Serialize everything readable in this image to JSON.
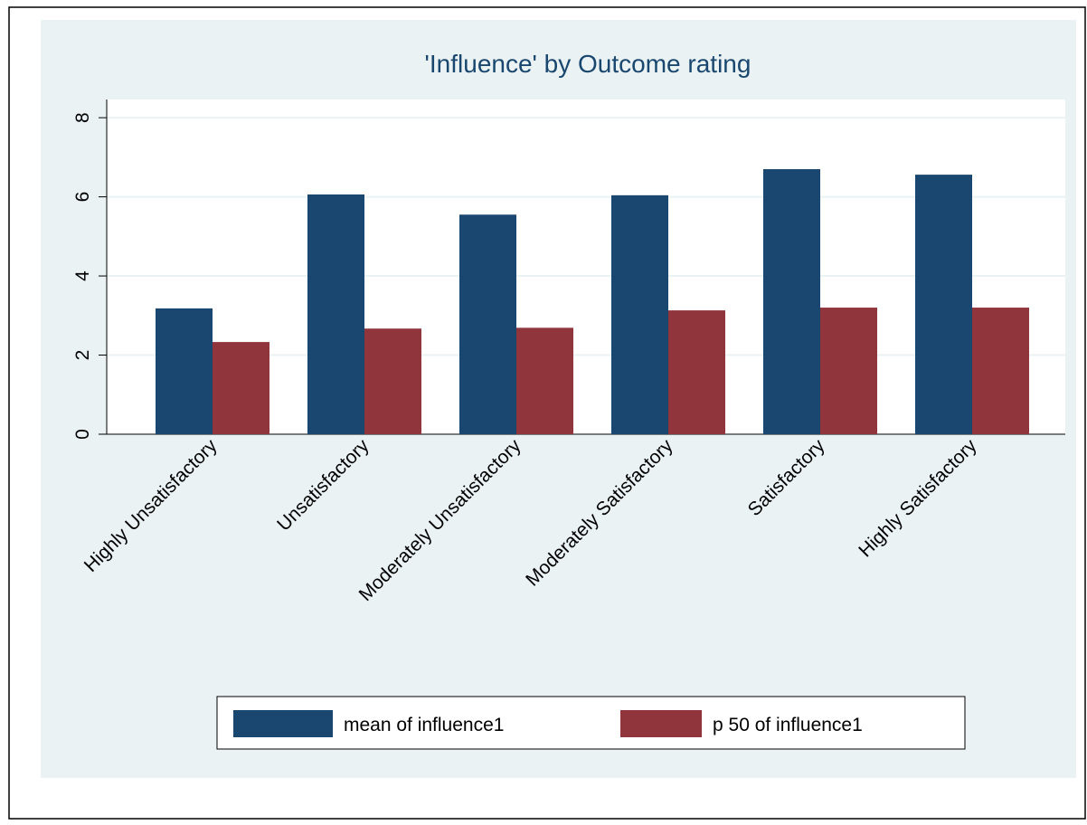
{
  "chart_data": {
    "type": "bar",
    "title": "'Influence' by Outcome rating",
    "categories": [
      "Highly Unsatisfactory",
      "Unsatisfactory",
      "Moderately Unsatisfactory",
      "Moderately Satisfactory",
      "Satisfactory",
      "Highly Satisfactory"
    ],
    "series": [
      {
        "name": "mean of influence1",
        "color": "#1a476f",
        "values": [
          3.18,
          6.06,
          5.55,
          6.04,
          6.7,
          6.56
        ]
      },
      {
        "name": "p 50 of influence1",
        "color": "#90353b",
        "values": [
          2.33,
          2.67,
          2.69,
          3.13,
          3.2,
          3.2
        ]
      }
    ],
    "ylim": [
      0,
      8.46
    ],
    "yticks": [
      0,
      2,
      4,
      6,
      8
    ],
    "grid": true,
    "legend": "bottom"
  }
}
